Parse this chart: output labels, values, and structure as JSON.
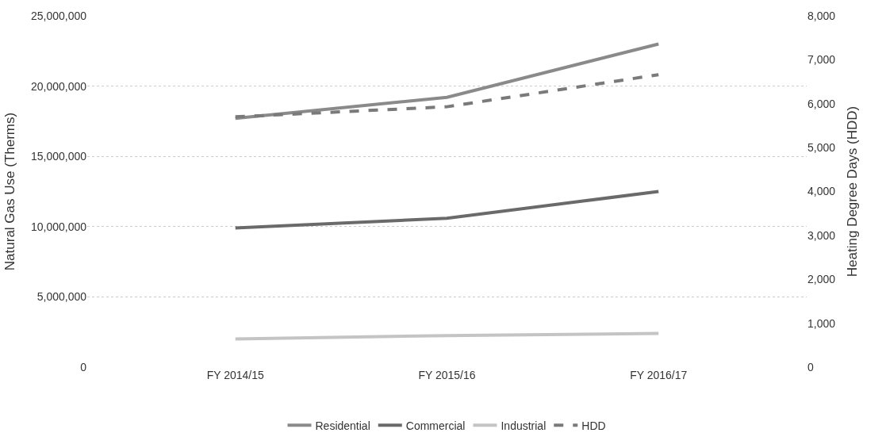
{
  "chart_data": {
    "type": "line",
    "categories": [
      "FY 2014/15",
      "FY 2015/16",
      "FY 2016/17"
    ],
    "series": [
      {
        "name": "Residential",
        "color": "#8a8a8a",
        "values": [
          17700000,
          19200000,
          23000000
        ]
      },
      {
        "name": "Commercial",
        "color": "#6a6a6a",
        "values": [
          9900000,
          10600000,
          12500000
        ]
      },
      {
        "name": "Industrial",
        "color": "#c4c4c4",
        "values": [
          2000000,
          2250000,
          2400000
        ]
      },
      {
        "name": "HDD",
        "color": "#7a7a7a",
        "values": [
          5700,
          5930,
          6660
        ],
        "axis": "y2",
        "line_style": "dashed"
      }
    ],
    "ylabel": "Natural Gas Use (Therms)",
    "y2label": "Heating Degree Days (HDD)",
    "ylim": [
      0,
      25000000
    ],
    "yticks": [
      {
        "value": 0,
        "label": "0"
      },
      {
        "value": 5000000,
        "label": "5,000,000"
      },
      {
        "value": 10000000,
        "label": "10,000,000"
      },
      {
        "value": 15000000,
        "label": "15,000,000"
      },
      {
        "value": 20000000,
        "label": "20,000,000"
      },
      {
        "value": 25000000,
        "label": "25,000,000"
      }
    ],
    "y2lim": [
      0,
      8000
    ],
    "y2ticks": [
      {
        "value": 0,
        "label": "0"
      },
      {
        "value": 1000,
        "label": "1,000"
      },
      {
        "value": 2000,
        "label": "2,000"
      },
      {
        "value": 3000,
        "label": "3,000"
      },
      {
        "value": 4000,
        "label": "4,000"
      },
      {
        "value": 5000,
        "label": "5,000"
      },
      {
        "value": 6000,
        "label": "6,000"
      },
      {
        "value": 7000,
        "label": "7,000"
      },
      {
        "value": 8000,
        "label": "8,000"
      }
    ],
    "grid": "y",
    "legend": "bottom",
    "marker": "none"
  }
}
